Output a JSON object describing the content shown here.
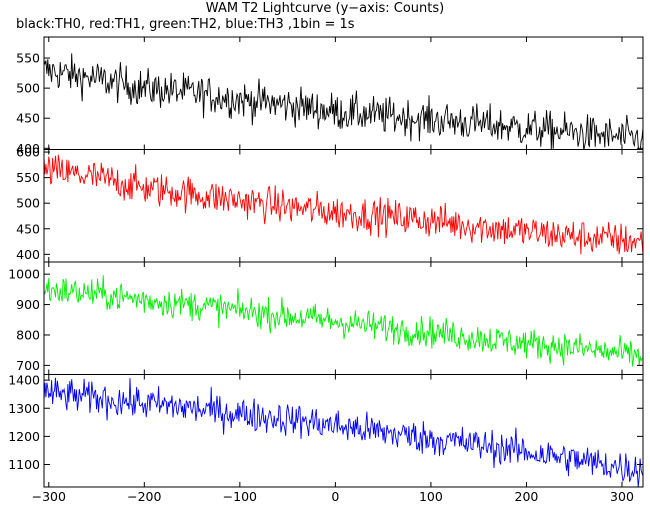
{
  "chart_data": {
    "type": "line",
    "title": "WAM T2 Lightcurve (y−axis: Counts)",
    "subtitle": "black:TH0, red:TH1, green:TH2, blue:TH3 ,1bin = 1s",
    "xlabel": "",
    "ylabel": "",
    "grid": false,
    "legend": "none",
    "xlim": [
      -305,
      322
    ],
    "xticks": [
      -300,
      -200,
      -100,
      0,
      100,
      200,
      300
    ],
    "xtick_labels": [
      "−300",
      "−200",
      "−100",
      "0",
      "100",
      "200",
      "300"
    ],
    "bin_size_s": 1,
    "series": [
      {
        "color": "#000000",
        "ylim": [
          398,
          585
        ],
        "yticks": [
          400,
          450,
          500,
          550
        ],
        "trend": [
          {
            "x": -305,
            "y": 530
          },
          {
            "x": -250,
            "y": 515
          },
          {
            "x": -200,
            "y": 500
          },
          {
            "x": -150,
            "y": 492
          },
          {
            "x": -100,
            "y": 481
          },
          {
            "x": -50,
            "y": 472
          },
          {
            "x": 0,
            "y": 461
          },
          {
            "x": 50,
            "y": 454
          },
          {
            "x": 100,
            "y": 448
          },
          {
            "x": 150,
            "y": 441
          },
          {
            "x": 200,
            "y": 433
          },
          {
            "x": 250,
            "y": 426
          },
          {
            "x": 300,
            "y": 418
          },
          {
            "x": 320,
            "y": 415
          }
        ],
        "noise_sigma": 22
      },
      {
        "color": "#ff0000",
        "ylim": [
          385,
          605
        ],
        "yticks": [
          400,
          450,
          500,
          550,
          600
        ],
        "trend": [
          {
            "x": -305,
            "y": 565
          },
          {
            "x": -250,
            "y": 550
          },
          {
            "x": -200,
            "y": 530
          },
          {
            "x": -150,
            "y": 518
          },
          {
            "x": -100,
            "y": 505
          },
          {
            "x": -50,
            "y": 493
          },
          {
            "x": 0,
            "y": 482
          },
          {
            "x": 50,
            "y": 475
          },
          {
            "x": 100,
            "y": 466
          },
          {
            "x": 150,
            "y": 455
          },
          {
            "x": 200,
            "y": 444
          },
          {
            "x": 250,
            "y": 435
          },
          {
            "x": 300,
            "y": 428
          },
          {
            "x": 320,
            "y": 424
          }
        ],
        "noise_sigma": 24
      },
      {
        "color": "#00ee00",
        "ylim": [
          670,
          1040
        ],
        "yticks": [
          700,
          800,
          900,
          1000
        ],
        "trend": [
          {
            "x": -305,
            "y": 950
          },
          {
            "x": -250,
            "y": 935
          },
          {
            "x": -200,
            "y": 915
          },
          {
            "x": -150,
            "y": 900
          },
          {
            "x": -100,
            "y": 880
          },
          {
            "x": -50,
            "y": 862
          },
          {
            "x": 0,
            "y": 845
          },
          {
            "x": 50,
            "y": 825
          },
          {
            "x": 100,
            "y": 810
          },
          {
            "x": 150,
            "y": 790
          },
          {
            "x": 200,
            "y": 772
          },
          {
            "x": 250,
            "y": 758
          },
          {
            "x": 300,
            "y": 738
          },
          {
            "x": 320,
            "y": 730
          }
        ],
        "noise_sigma": 35
      },
      {
        "color": "#0000ff",
        "ylim": [
          1020,
          1420
        ],
        "yticks": [
          1100,
          1200,
          1300,
          1400
        ],
        "trend": [
          {
            "x": -305,
            "y": 1355
          },
          {
            "x": -250,
            "y": 1335
          },
          {
            "x": -200,
            "y": 1318
          },
          {
            "x": -150,
            "y": 1300
          },
          {
            "x": -100,
            "y": 1280
          },
          {
            "x": -50,
            "y": 1262
          },
          {
            "x": 0,
            "y": 1238
          },
          {
            "x": 50,
            "y": 1215
          },
          {
            "x": 100,
            "y": 1192
          },
          {
            "x": 150,
            "y": 1170
          },
          {
            "x": 200,
            "y": 1145
          },
          {
            "x": 250,
            "y": 1118
          },
          {
            "x": 300,
            "y": 1090
          },
          {
            "x": 320,
            "y": 1082
          }
        ],
        "noise_sigma": 42
      }
    ]
  }
}
